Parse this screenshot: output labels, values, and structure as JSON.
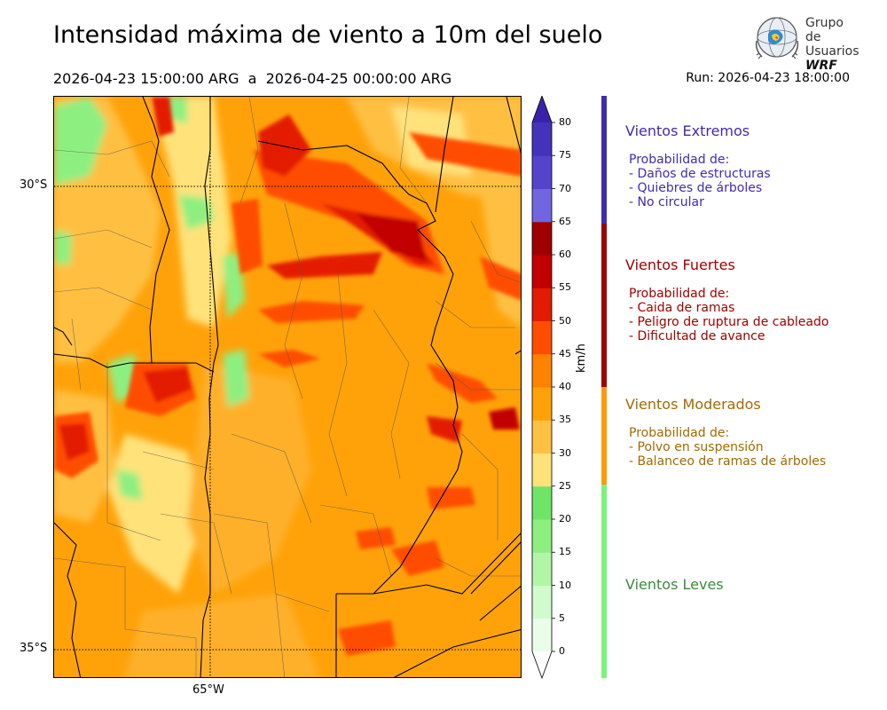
{
  "title": "Intensidad máxima de viento a 10m del suelo",
  "period": "2026-04-23 15:00:00 ARG  a  2026-04-25 00:00:00 ARG",
  "run": "Run: 2026-04-23 18:00:00",
  "logo": {
    "line1": "Grupo de",
    "line2": "Usuarios",
    "line3": "WRF"
  },
  "map": {
    "lat_labels": [
      "30°S",
      "35°S"
    ],
    "lon_labels": [
      "65°W"
    ]
  },
  "colorbar": {
    "unit": "km/h",
    "ticks": [
      "0",
      "5",
      "10",
      "15",
      "20",
      "25",
      "30",
      "35",
      "40",
      "45",
      "50",
      "55",
      "60",
      "65",
      "70",
      "75",
      "80"
    ],
    "colors": [
      "#eafde8",
      "#d2fbcd",
      "#b1f6a6",
      "#8eef81",
      "#6ee567",
      "#ffe27a",
      "#ffc043",
      "#ffa20a",
      "#ff8300",
      "#ff4d00",
      "#e31b00",
      "#c20000",
      "#9e0000",
      "#7265e0",
      "#5444cc",
      "#4532bb",
      "#3a22a8"
    ]
  },
  "categories": [
    {
      "title": "Vientos Extremos",
      "color": "#3c2db4",
      "desc": [
        "Probabilidad de:",
        "- Daños de estructuras",
        "- Quiebres de árboles",
        "- No circular"
      ]
    },
    {
      "title": "Vientos Fuertes",
      "color": "#a00000",
      "desc": [
        "Probabilidad de:",
        "- Caida de ramas",
        "- Peligro de ruptura de cableado",
        "- Dificultad de avance"
      ]
    },
    {
      "title": "Vientos Moderados",
      "color": "#a36a00",
      "desc": [
        "Probabilidad de:",
        "- Polvo en suspensión",
        "- Balanceo de ramas de árboles"
      ]
    },
    {
      "title": "Vientos Leves",
      "color": "#3c8a3c",
      "desc": []
    }
  ]
}
